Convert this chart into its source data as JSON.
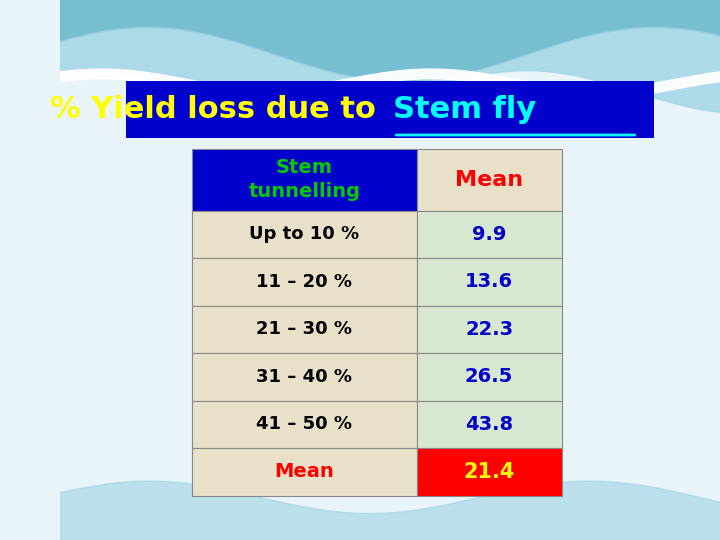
{
  "title_text": "% Yield loss due to ",
  "title_underline": "Stem fly",
  "title_bg": "#0000CC",
  "title_yellow": "#FFFF00",
  "title_cyan": "#00FFFF",
  "bg_color": "#E8F4F8",
  "table_rows": [
    [
      "Stem\ntunnelling",
      "Mean"
    ],
    [
      "Up to 10 %",
      "9.9"
    ],
    [
      "11 – 20 %",
      "13.6"
    ],
    [
      "21 – 30 %",
      "22.3"
    ],
    [
      "31 – 40 %",
      "26.5"
    ],
    [
      "41 – 50 %",
      "43.8"
    ],
    [
      "Mean",
      "21.4"
    ]
  ],
  "header_bg": "#0000CC",
  "header_col1_text_color": "#00CC00",
  "header_col2_text_color": "#FF0000",
  "data_col1_bg": "#E8E0C8",
  "data_col2_bg": "#D8E8D0",
  "last_row_col1_bg": "#E8E0C8",
  "last_row_col2_bg": "#FF0000",
  "last_row_col2_text_color": "#FFFF00",
  "data_col1_text_color": "#000000",
  "data_col2_text_color": "#0000CC",
  "table_border_color": "#888888"
}
